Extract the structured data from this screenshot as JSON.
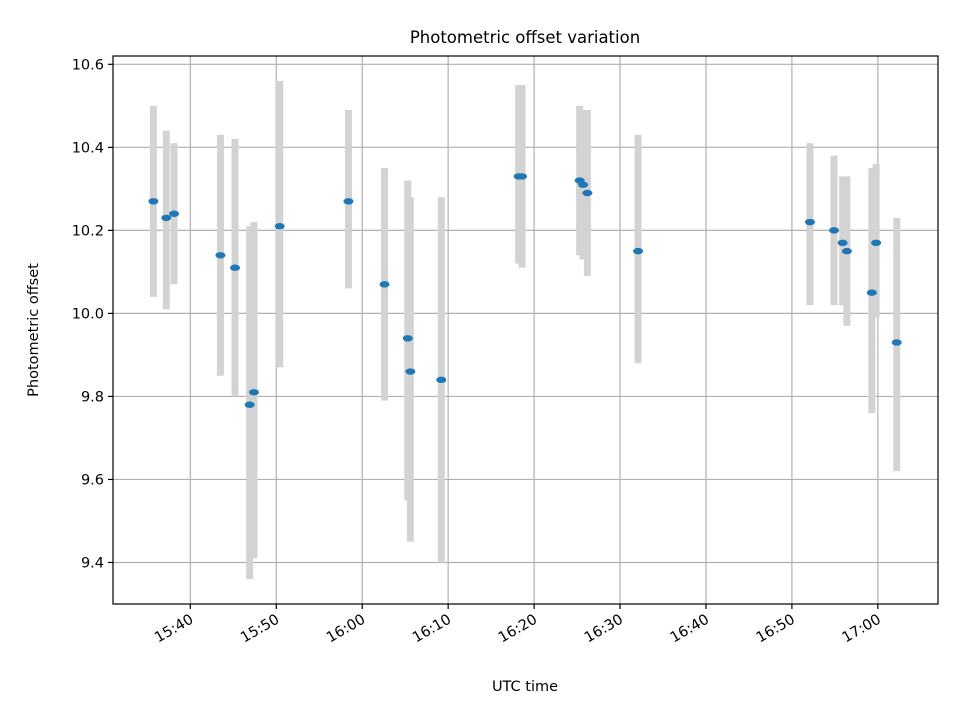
{
  "chart_data": {
    "type": "scatter",
    "title": "Photometric offset variation",
    "xlabel": "UTC time",
    "ylabel": "Photometric offset",
    "x_tick_labels": [
      "15:40",
      "15:50",
      "16:00",
      "16:10",
      "16:20",
      "16:30",
      "16:40",
      "16:50",
      "17:00"
    ],
    "x_tick_minutes": [
      940,
      950,
      960,
      970,
      980,
      990,
      1000,
      1010,
      1020
    ],
    "y_ticks": [
      9.4,
      9.6,
      9.8,
      10.0,
      10.2,
      10.4,
      10.6
    ],
    "y_tick_labels": [
      "9.4",
      "9.6",
      "9.8",
      "10.0",
      "10.2",
      "10.4",
      "10.6"
    ],
    "xlim": [
      "15:31",
      "17:07"
    ],
    "ylim": [
      9.3,
      10.62
    ],
    "grid": true,
    "colors": {
      "point": "#1f77b4",
      "errorbar": "#d3d3d3",
      "grid": "#b0b0b0"
    },
    "points": [
      {
        "time": "15:35:42",
        "value": 10.27,
        "low": 10.04,
        "high": 10.5
      },
      {
        "time": "15:37:12",
        "value": 10.23,
        "low": 10.01,
        "high": 10.44
      },
      {
        "time": "15:38:06",
        "value": 10.24,
        "low": 10.07,
        "high": 10.41
      },
      {
        "time": "15:43:30",
        "value": 10.14,
        "low": 9.85,
        "high": 10.43
      },
      {
        "time": "15:45:12",
        "value": 10.11,
        "low": 9.8,
        "high": 10.42
      },
      {
        "time": "15:46:54",
        "value": 9.78,
        "low": 9.36,
        "high": 10.21
      },
      {
        "time": "15:47:24",
        "value": 9.81,
        "low": 9.41,
        "high": 10.22
      },
      {
        "time": "15:50:24",
        "value": 10.21,
        "low": 9.87,
        "high": 10.56
      },
      {
        "time": "15:58:24",
        "value": 10.27,
        "low": 10.06,
        "high": 10.49
      },
      {
        "time": "16:02:36",
        "value": 10.07,
        "low": 9.79,
        "high": 10.35
      },
      {
        "time": "16:05:18",
        "value": 9.94,
        "low": 9.55,
        "high": 10.32
      },
      {
        "time": "16:05:36",
        "value": 9.86,
        "low": 9.45,
        "high": 10.28
      },
      {
        "time": "16:09:12",
        "value": 9.84,
        "low": 9.4,
        "high": 10.28
      },
      {
        "time": "16:18:12",
        "value": 10.33,
        "low": 10.12,
        "high": 10.55
      },
      {
        "time": "16:18:36",
        "value": 10.33,
        "low": 10.11,
        "high": 10.55
      },
      {
        "time": "16:25:18",
        "value": 10.32,
        "low": 10.14,
        "high": 10.5
      },
      {
        "time": "16:25:42",
        "value": 10.31,
        "low": 10.13,
        "high": 10.49
      },
      {
        "time": "16:26:12",
        "value": 10.29,
        "low": 10.09,
        "high": 10.49
      },
      {
        "time": "16:32:06",
        "value": 10.15,
        "low": 9.88,
        "high": 10.43
      },
      {
        "time": "16:52:06",
        "value": 10.22,
        "low": 10.02,
        "high": 10.41
      },
      {
        "time": "16:54:54",
        "value": 10.2,
        "low": 10.02,
        "high": 10.38
      },
      {
        "time": "16:55:54",
        "value": 10.17,
        "low": 10.02,
        "high": 10.33
      },
      {
        "time": "16:56:24",
        "value": 10.15,
        "low": 9.97,
        "high": 10.33
      },
      {
        "time": "16:59:18",
        "value": 10.05,
        "low": 9.76,
        "high": 10.35
      },
      {
        "time": "16:59:48",
        "value": 10.17,
        "low": 9.99,
        "high": 10.36
      },
      {
        "time": "17:02:12",
        "value": 9.93,
        "low": 9.62,
        "high": 10.23
      }
    ]
  }
}
